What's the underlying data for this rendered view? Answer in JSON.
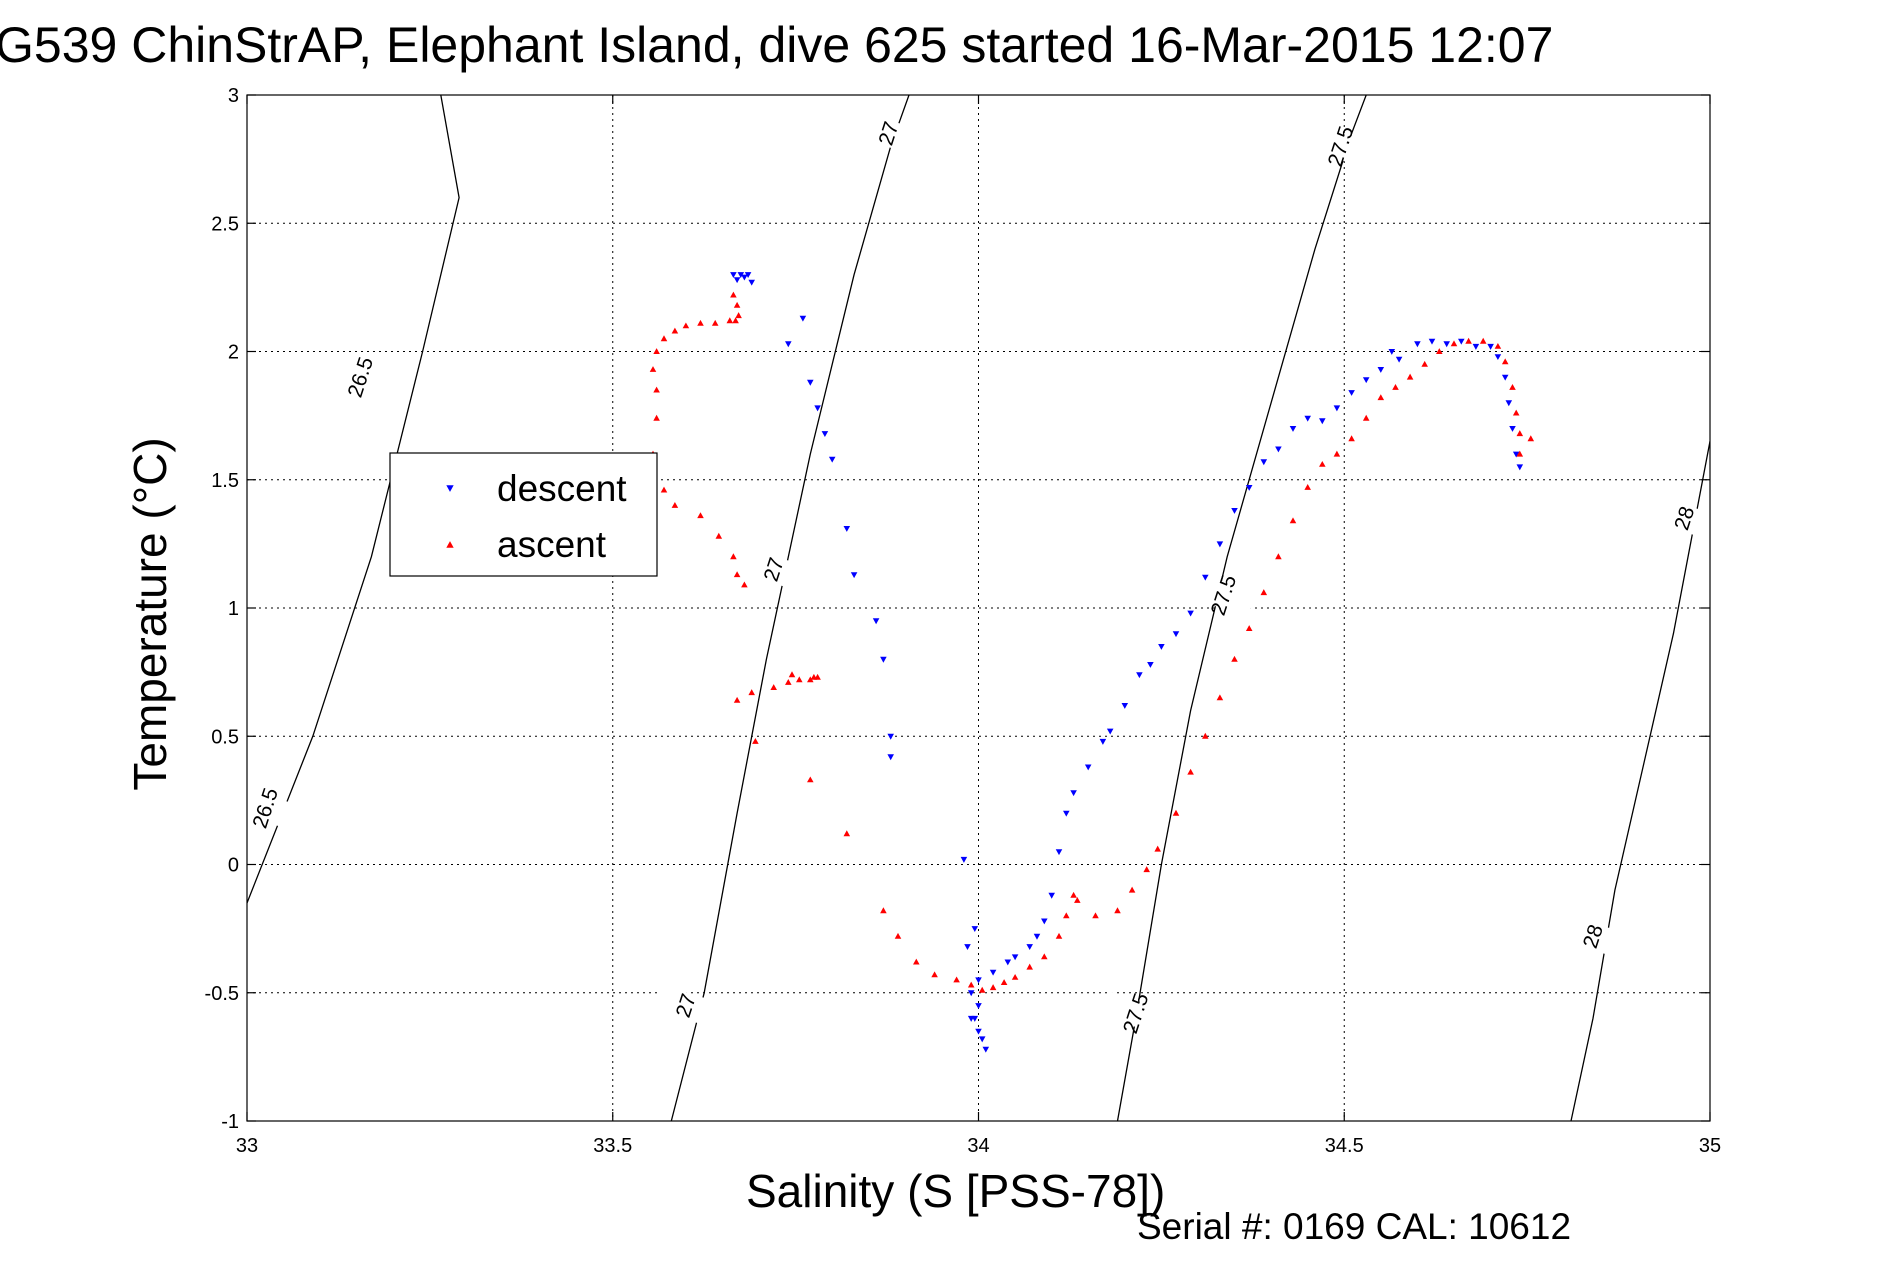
{
  "chart_data": {
    "type": "scatter",
    "title": "G539 ChinStrAP, Elephant Island, dive 625 started 16-Mar-2015 12:07",
    "xlabel": "Salinity (S [PSS-78])",
    "ylabel": "Temperature (°C)",
    "footer": "Serial #: 0169 CAL: 10612",
    "xlim": [
      33,
      35
    ],
    "ylim": [
      -1,
      3
    ],
    "xticks": [
      "33",
      "33.5",
      "34",
      "34.5",
      "35"
    ],
    "yticks": [
      "-1",
      "-0.5",
      "0",
      "0.5",
      "1",
      "1.5",
      "2",
      "2.5",
      "3"
    ],
    "grid": true,
    "legend_position": "left",
    "contours": [
      {
        "label": "26.5",
        "points": [
          [
            33.0,
            -0.15
          ],
          [
            33.09,
            0.5
          ],
          [
            33.17,
            1.2
          ],
          [
            33.24,
            2.0
          ],
          [
            33.29,
            2.6
          ],
          [
            33.265,
            3.0
          ]
        ]
      },
      {
        "label": "27",
        "points": [
          [
            33.58,
            -1.0
          ],
          [
            33.625,
            -0.5
          ],
          [
            33.67,
            0.2
          ],
          [
            33.71,
            0.8
          ],
          [
            33.77,
            1.6
          ],
          [
            33.83,
            2.3
          ],
          [
            33.88,
            2.8
          ],
          [
            33.905,
            3.0
          ]
        ]
      },
      {
        "label": "27.5",
        "points": [
          [
            34.19,
            -1.0
          ],
          [
            34.215,
            -0.6
          ],
          [
            34.25,
            0.0
          ],
          [
            34.29,
            0.6
          ],
          [
            34.34,
            1.2
          ],
          [
            34.4,
            1.8
          ],
          [
            34.46,
            2.4
          ],
          [
            34.51,
            2.85
          ],
          [
            34.53,
            3.0
          ]
        ]
      },
      {
        "label": "28",
        "points": [
          [
            34.81,
            -1.0
          ],
          [
            34.84,
            -0.6
          ],
          [
            34.87,
            -0.1
          ],
          [
            34.91,
            0.4
          ],
          [
            34.95,
            0.9
          ],
          [
            35.0,
            1.65
          ]
        ]
      }
    ],
    "contour_labels": [
      {
        "text": "26.5",
        "x": 33.155,
        "y": 1.9
      },
      {
        "text": "26.5",
        "x": 33.025,
        "y": 0.22
      },
      {
        "text": "27",
        "x": 33.877,
        "y": 2.85
      },
      {
        "text": "27",
        "x": 33.72,
        "y": 1.15
      },
      {
        "text": "27",
        "x": 33.6,
        "y": -0.55
      },
      {
        "text": "27.5",
        "x": 34.495,
        "y": 2.8
      },
      {
        "text": "27.5",
        "x": 34.335,
        "y": 1.05
      },
      {
        "text": "27.5",
        "x": 34.215,
        "y": -0.58
      },
      {
        "text": "28",
        "x": 34.965,
        "y": 1.35
      },
      {
        "text": "28",
        "x": 34.84,
        "y": -0.28
      }
    ],
    "series": [
      {
        "name": "descent",
        "color": "#0000ff",
        "marker": "triangle-down",
        "x": [
          33.665,
          33.67,
          33.675,
          33.68,
          33.685,
          33.69,
          33.76,
          33.74,
          33.77,
          33.78,
          33.79,
          33.8,
          33.82,
          33.83,
          33.86,
          33.87,
          33.88,
          33.88,
          33.98,
          33.995,
          33.99,
          34.0,
          33.985,
          34.0,
          33.99,
          33.995,
          34.0,
          34.005,
          34.01,
          34.02,
          34.04,
          34.05,
          34.07,
          34.08,
          34.09,
          34.1,
          34.11,
          34.12,
          34.13,
          34.15,
          34.17,
          34.18,
          34.2,
          34.22,
          34.235,
          34.25,
          34.27,
          34.29,
          34.31,
          34.33,
          34.35,
          34.37,
          34.39,
          34.41,
          34.43,
          34.45,
          34.47,
          34.49,
          34.51,
          34.53,
          34.55,
          34.565,
          34.575,
          34.6,
          34.62,
          34.64,
          34.66,
          34.68,
          34.7,
          34.71,
          34.72,
          34.725,
          34.73,
          34.735,
          34.74
        ],
        "y": [
          2.3,
          2.28,
          2.3,
          2.29,
          2.3,
          2.27,
          2.13,
          2.03,
          1.88,
          1.78,
          1.68,
          1.58,
          1.31,
          1.13,
          0.95,
          0.8,
          0.42,
          0.5,
          0.02,
          -0.25,
          -0.6,
          -0.55,
          -0.32,
          -0.45,
          -0.5,
          -0.6,
          -0.65,
          -0.68,
          -0.72,
          -0.42,
          -0.38,
          -0.36,
          -0.32,
          -0.28,
          -0.22,
          -0.12,
          0.05,
          0.2,
          0.28,
          0.38,
          0.48,
          0.52,
          0.62,
          0.74,
          0.78,
          0.85,
          0.9,
          0.98,
          1.12,
          1.25,
          1.38,
          1.47,
          1.57,
          1.62,
          1.7,
          1.74,
          1.73,
          1.78,
          1.84,
          1.89,
          1.93,
          2.0,
          1.97,
          2.03,
          2.04,
          2.03,
          2.04,
          2.02,
          2.02,
          1.98,
          1.9,
          1.8,
          1.7,
          1.6,
          1.55
        ]
      },
      {
        "name": "ascent",
        "color": "#ff0000",
        "marker": "triangle-up",
        "x": [
          33.665,
          33.67,
          33.672,
          33.668,
          33.66,
          33.64,
          33.62,
          33.6,
          33.585,
          33.57,
          33.56,
          33.555,
          33.56,
          33.56,
          33.555,
          33.555,
          33.57,
          33.585,
          33.62,
          33.645,
          33.665,
          33.67,
          33.68,
          33.745,
          33.775,
          33.78,
          33.77,
          33.755,
          33.74,
          33.72,
          33.69,
          33.67,
          33.695,
          33.77,
          33.82,
          33.87,
          33.89,
          33.915,
          33.94,
          33.97,
          33.99,
          34.005,
          34.02,
          34.035,
          34.05,
          34.07,
          34.09,
          34.11,
          34.12,
          34.13,
          34.135,
          34.16,
          34.19,
          34.21,
          34.23,
          34.245,
          34.27,
          34.29,
          34.31,
          34.33,
          34.35,
          34.37,
          34.39,
          34.41,
          34.43,
          34.45,
          34.47,
          34.49,
          34.51,
          34.53,
          34.55,
          34.57,
          34.59,
          34.61,
          34.63,
          34.65,
          34.67,
          34.69,
          34.71,
          34.72,
          34.73,
          34.735,
          34.74,
          34.74,
          34.755
        ],
        "y": [
          2.22,
          2.18,
          2.14,
          2.12,
          2.12,
          2.11,
          2.11,
          2.1,
          2.08,
          2.05,
          2.0,
          1.93,
          1.85,
          1.74,
          1.6,
          1.56,
          1.46,
          1.4,
          1.36,
          1.28,
          1.2,
          1.13,
          1.09,
          0.74,
          0.73,
          0.73,
          0.72,
          0.72,
          0.71,
          0.69,
          0.67,
          0.64,
          0.48,
          0.33,
          0.12,
          -0.18,
          -0.28,
          -0.38,
          -0.43,
          -0.45,
          -0.47,
          -0.49,
          -0.48,
          -0.46,
          -0.44,
          -0.4,
          -0.36,
          -0.28,
          -0.2,
          -0.12,
          -0.14,
          -0.2,
          -0.18,
          -0.1,
          -0.02,
          0.06,
          0.2,
          0.36,
          0.5,
          0.65,
          0.8,
          0.92,
          1.06,
          1.2,
          1.34,
          1.47,
          1.56,
          1.6,
          1.66,
          1.74,
          1.82,
          1.86,
          1.9,
          1.95,
          2.0,
          2.03,
          2.04,
          2.04,
          2.02,
          1.96,
          1.86,
          1.76,
          1.68,
          1.6,
          1.66
        ]
      }
    ]
  }
}
